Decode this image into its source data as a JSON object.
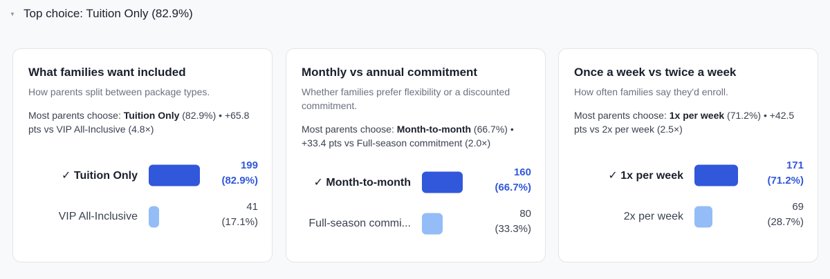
{
  "summary": {
    "caret": "▼",
    "text": "Top choice: Tuition Only (82.9%)"
  },
  "cards": [
    {
      "title": "What families want included",
      "subtitle": "How parents split between package types.",
      "summary_prefix": "Most parents choose: ",
      "summary_choice": "Tuition Only",
      "summary_rest": " (82.9%) • +65.8 pts vs VIP All-Inclusive (4.8×)",
      "options": [
        {
          "label": "✓ Tuition Only",
          "count": "199",
          "pct": "(82.9%)",
          "share": 0.829,
          "winner": true
        },
        {
          "label": "VIP All-Inclusive",
          "count": "41",
          "pct": "(17.1%)",
          "share": 0.171,
          "winner": false
        }
      ]
    },
    {
      "title": "Monthly vs annual commitment",
      "subtitle": "Whether families prefer flexibility or a discounted commitment.",
      "summary_prefix": "Most parents choose: ",
      "summary_choice": "Month-to-month",
      "summary_rest": " (66.7%) • +33.4 pts vs Full-season commitment (2.0×)",
      "options": [
        {
          "label": "✓ Month-to-month",
          "count": "160",
          "pct": "(66.7%)",
          "share": 0.667,
          "winner": true
        },
        {
          "label": "Full-season commi...",
          "count": "80",
          "pct": "(33.3%)",
          "share": 0.333,
          "winner": false
        }
      ]
    },
    {
      "title": "Once a week vs twice a week",
      "subtitle": "How often families say they'd enroll.",
      "summary_prefix": "Most parents choose: ",
      "summary_choice": "1x per week",
      "summary_rest": " (71.2%) • +42.5 pts vs 2x per week (2.5×)",
      "options": [
        {
          "label": "✓ 1x per week",
          "count": "171",
          "pct": "(71.2%)",
          "share": 0.712,
          "winner": true
        },
        {
          "label": "2x per week",
          "count": "69",
          "pct": "(28.7%)",
          "share": 0.287,
          "winner": false
        }
      ]
    }
  ]
}
